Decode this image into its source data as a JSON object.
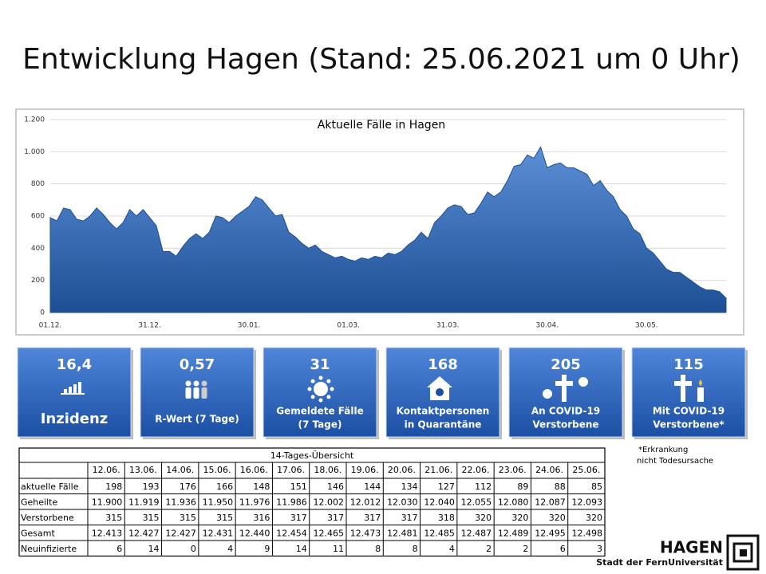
{
  "header": {
    "title": "Entwicklung Hagen (Stand:  25.06.2021  um 0 Uhr)"
  },
  "chart_data": {
    "type": "area",
    "title": "Aktuelle Fälle in Hagen",
    "color": "#2e6bb8",
    "grid": true,
    "categories": [
      "01.12.",
      null,
      null,
      null,
      null,
      null,
      null,
      null,
      null,
      null,
      null,
      null,
      null,
      null,
      null,
      "31.12.",
      null,
      null,
      null,
      null,
      null,
      null,
      null,
      null,
      null,
      null,
      null,
      null,
      null,
      null,
      "30.01.",
      null,
      null,
      null,
      null,
      null,
      null,
      null,
      null,
      null,
      null,
      null,
      null,
      null,
      null,
      "01.03.",
      null,
      null,
      null,
      null,
      null,
      null,
      null,
      null,
      null,
      null,
      null,
      null,
      null,
      null,
      "31.03.",
      null,
      null,
      null,
      null,
      null,
      null,
      null,
      null,
      null,
      null,
      null,
      null,
      null,
      null,
      "30.04.",
      null,
      null,
      null,
      null,
      null,
      null,
      null,
      null,
      null,
      null,
      null,
      null,
      null,
      null,
      "30.05.",
      null,
      null,
      null,
      null,
      null,
      null,
      null,
      null,
      null,
      null,
      null,
      null
    ],
    "values": [
      590,
      570,
      650,
      640,
      580,
      570,
      600,
      650,
      610,
      560,
      520,
      560,
      640,
      600,
      640,
      590,
      540,
      380,
      380,
      350,
      410,
      460,
      490,
      460,
      500,
      600,
      590,
      560,
      600,
      630,
      660,
      720,
      700,
      650,
      600,
      610,
      500,
      470,
      430,
      400,
      420,
      380,
      360,
      340,
      350,
      330,
      320,
      340,
      330,
      350,
      340,
      370,
      360,
      380,
      420,
      450,
      500,
      460,
      560,
      600,
      650,
      670,
      660,
      610,
      620,
      680,
      750,
      720,
      750,
      820,
      910,
      920,
      980,
      960,
      1030,
      900,
      920,
      930,
      900,
      900,
      880,
      860,
      790,
      820,
      760,
      720,
      640,
      600,
      520,
      490,
      400,
      370,
      320,
      270,
      250,
      250,
      220,
      190,
      160,
      140,
      140,
      130,
      90
    ],
    "ylim": [
      0,
      1200
    ],
    "yticks": [
      {
        "value": 1200,
        "label": "1.200"
      },
      {
        "value": 1000,
        "label": "1.000"
      },
      800,
      600,
      400,
      200,
      0
    ]
  },
  "tiles": [
    {
      "value": "16,4",
      "label": [
        "Inzidenz"
      ]
    },
    {
      "value": "0,57",
      "label": [
        "R-Wert (7 Tage)"
      ]
    },
    {
      "value": "31",
      "label": [
        "Gemeldete Fälle",
        "(7 Tage)"
      ]
    },
    {
      "value": "168",
      "label": [
        "Kontaktpersonen",
        "in Quarantäne"
      ]
    },
    {
      "value": "205",
      "label": [
        "An COVID-19",
        "Verstorbene"
      ]
    },
    {
      "value": "115",
      "label": [
        "Mit COVID-19",
        "Verstorbene*"
      ]
    }
  ],
  "footnote": [
    "*Erkrankung",
    "nicht Todesursache"
  ],
  "table": {
    "title": "14-Tages-Übersicht",
    "columns": [
      "12.06.",
      "13.06.",
      "14.06.",
      "15.06.",
      "16.06.",
      "17.06.",
      "18.06.",
      "19.06.",
      "20.06.",
      "21.06.",
      "22.06.",
      "23.06.",
      "24.06.",
      "25.06."
    ],
    "rows": [
      {
        "label": "aktuelle Fälle",
        "values": [
          198,
          193,
          176,
          166,
          148,
          151,
          146,
          144,
          134,
          127,
          112,
          89,
          88,
          85
        ]
      },
      {
        "label": "Geheilte",
        "values": [
          "11.900",
          "11.919",
          "11.936",
          "11.950",
          "11.976",
          "11.986",
          "12.002",
          "12.012",
          "12.030",
          "12.040",
          "12.055",
          "12.080",
          "12.087",
          "12.093"
        ]
      },
      {
        "label": "Verstorbene",
        "values": [
          315,
          315,
          315,
          315,
          316,
          317,
          317,
          317,
          317,
          318,
          320,
          320,
          320,
          320
        ]
      },
      {
        "label": "Gesamt",
        "values": [
          "12.413",
          "12.427",
          "12.427",
          "12.431",
          "12.440",
          "12.454",
          "12.465",
          "12.473",
          "12.481",
          "12.485",
          "12.487",
          "12.489",
          "12.495",
          "12.498"
        ]
      },
      {
        "label": "Neuinfizierte",
        "values": [
          6,
          14,
          0,
          4,
          9,
          14,
          11,
          8,
          8,
          4,
          2,
          2,
          6,
          3
        ]
      }
    ]
  },
  "logo": {
    "name": "HAGEN",
    "subtitle": "Stadt der FernUniversität"
  }
}
